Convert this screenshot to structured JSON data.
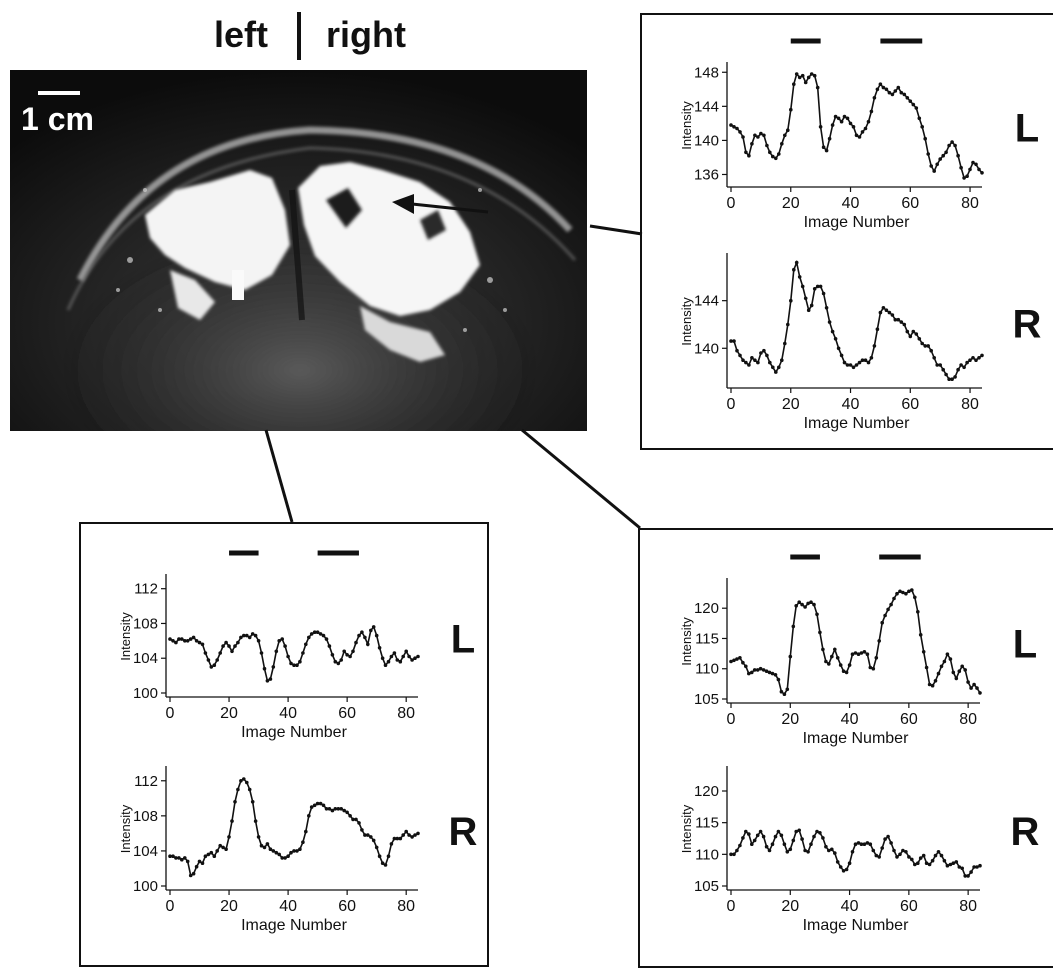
{
  "header": {
    "left": "left",
    "right": "right"
  },
  "image": {
    "scale_label": "1 cm"
  },
  "chart_data": [
    {
      "type": "line",
      "panel": "top-right",
      "subplot": "L",
      "label": "L",
      "xlabel": "Image Number",
      "ylabel": "Intensity",
      "xlim": [
        0,
        84
      ],
      "ylim": [
        135,
        148.5
      ],
      "yticks": [
        136,
        140,
        144,
        148
      ],
      "xticks": [
        0,
        20,
        40,
        60,
        80
      ],
      "stim_bars": [
        [
          20,
          30
        ],
        [
          50,
          64
        ]
      ],
      "values": [
        141.8,
        141.6,
        141.4,
        141.0,
        140.4,
        138.6,
        138.2,
        139.6,
        140.6,
        140.4,
        140.8,
        140.6,
        139.4,
        138.6,
        138.1,
        137.9,
        138.4,
        139.6,
        140.6,
        141.2,
        143.6,
        146.6,
        147.8,
        147.4,
        147.6,
        146.8,
        147.4,
        147.8,
        147.6,
        146.2,
        141.6,
        139.2,
        138.8,
        140.2,
        141.8,
        142.8,
        142.6,
        142.2,
        142.8,
        142.6,
        142.0,
        141.6,
        140.6,
        140.4,
        141.0,
        141.4,
        142.2,
        143.4,
        145.0,
        146.0,
        146.6,
        146.2,
        146.0,
        145.6,
        145.4,
        145.8,
        146.2,
        145.6,
        145.4,
        145.0,
        144.6,
        144.2,
        143.8,
        142.6,
        141.6,
        140.2,
        138.4,
        137.0,
        136.4,
        137.2,
        137.8,
        138.2,
        138.6,
        139.4,
        139.8,
        139.4,
        138.2,
        136.8,
        135.6,
        135.8,
        136.6,
        137.4,
        137.2,
        136.6,
        136.2
      ]
    },
    {
      "type": "line",
      "panel": "top-right",
      "subplot": "R",
      "label": "R",
      "xlabel": "Image Number",
      "ylabel": "Intensity",
      "xlim": [
        0,
        84
      ],
      "ylim": [
        137,
        147.5
      ],
      "yticks": [
        140,
        144
      ],
      "xticks": [
        0,
        20,
        40,
        60,
        80
      ],
      "values": [
        140.6,
        140.6,
        139.8,
        139.4,
        139.0,
        138.8,
        138.6,
        139.2,
        139.0,
        138.8,
        139.6,
        139.8,
        139.4,
        138.8,
        138.4,
        138.0,
        138.4,
        139.0,
        140.4,
        142.0,
        144.0,
        146.6,
        147.2,
        146.0,
        145.2,
        144.2,
        143.2,
        143.6,
        145.0,
        145.2,
        145.2,
        144.6,
        143.4,
        142.2,
        141.4,
        140.8,
        140.0,
        139.4,
        138.8,
        138.6,
        138.6,
        138.4,
        138.6,
        138.8,
        139.0,
        139.0,
        138.8,
        139.2,
        140.2,
        141.6,
        143.0,
        143.4,
        143.2,
        143.0,
        142.8,
        142.4,
        142.4,
        142.2,
        142.0,
        141.4,
        141.0,
        141.4,
        141.2,
        140.8,
        140.4,
        140.2,
        140.2,
        139.8,
        139.2,
        138.6,
        138.6,
        138.2,
        137.8,
        137.4,
        137.4,
        137.6,
        138.2,
        138.6,
        138.4,
        138.8,
        139.0,
        139.2,
        139.0,
        139.2,
        139.4
      ]
    },
    {
      "type": "line",
      "panel": "bottom-left",
      "subplot": "L",
      "label": "L",
      "xlabel": "Image Number",
      "ylabel": "Intensity",
      "xlim": [
        0,
        84
      ],
      "ylim": [
        100,
        113
      ],
      "yticks": [
        100,
        104,
        108,
        112
      ],
      "xticks": [
        0,
        20,
        40,
        60,
        80
      ],
      "stim_bars": [
        [
          20,
          30
        ],
        [
          50,
          64
        ]
      ],
      "values": [
        106.2,
        106.0,
        105.8,
        106.2,
        106.2,
        106.0,
        106.0,
        106.2,
        106.4,
        106.0,
        105.8,
        105.6,
        104.6,
        103.8,
        103.0,
        103.2,
        103.8,
        104.6,
        105.4,
        105.8,
        105.4,
        104.8,
        105.4,
        105.8,
        106.4,
        106.6,
        106.6,
        106.4,
        106.8,
        106.6,
        106.0,
        104.6,
        102.8,
        101.4,
        101.6,
        103.0,
        104.8,
        106.0,
        106.2,
        105.4,
        104.2,
        103.4,
        103.2,
        103.2,
        103.6,
        104.6,
        105.6,
        106.4,
        106.8,
        107.0,
        107.0,
        106.8,
        106.6,
        106.2,
        105.4,
        104.4,
        103.6,
        103.4,
        103.8,
        104.8,
        104.4,
        104.2,
        104.8,
        105.8,
        106.6,
        107.0,
        106.4,
        105.6,
        107.2,
        107.6,
        106.6,
        105.2,
        104.0,
        103.2,
        103.6,
        104.2,
        104.6,
        103.8,
        103.6,
        104.2,
        104.8,
        104.2,
        103.8,
        104.0,
        104.2
      ]
    },
    {
      "type": "line",
      "panel": "bottom-left",
      "subplot": "R",
      "label": "R",
      "xlabel": "Image Number",
      "ylabel": "Intensity",
      "xlim": [
        0,
        84
      ],
      "ylim": [
        100,
        113
      ],
      "yticks": [
        100,
        104,
        108,
        112
      ],
      "xticks": [
        0,
        20,
        40,
        60,
        80
      ],
      "values": [
        103.4,
        103.4,
        103.2,
        103.2,
        103.0,
        103.2,
        102.8,
        101.2,
        101.4,
        102.2,
        102.8,
        102.6,
        103.4,
        103.6,
        103.8,
        103.4,
        104.0,
        104.6,
        104.4,
        104.2,
        105.6,
        107.4,
        109.6,
        111.0,
        112.0,
        112.2,
        111.8,
        111.0,
        109.6,
        107.4,
        105.6,
        104.6,
        104.4,
        104.8,
        104.2,
        104.0,
        103.8,
        103.6,
        103.2,
        103.2,
        103.4,
        103.8,
        104.0,
        104.0,
        104.2,
        105.0,
        106.2,
        108.0,
        109.0,
        109.2,
        109.4,
        109.4,
        109.2,
        108.8,
        108.8,
        108.6,
        108.8,
        108.8,
        108.8,
        108.6,
        108.4,
        108.0,
        107.6,
        107.6,
        107.2,
        106.4,
        105.8,
        105.8,
        105.6,
        105.2,
        104.4,
        103.4,
        102.6,
        102.4,
        103.4,
        104.8,
        105.4,
        105.4,
        105.4,
        105.8,
        106.2,
        105.8,
        105.6,
        105.8,
        106.0
      ]
    },
    {
      "type": "line",
      "panel": "bottom-right",
      "subplot": "L",
      "label": "L",
      "xlabel": "Image Number",
      "ylabel": "Intensity",
      "xlim": [
        0,
        84
      ],
      "ylim": [
        105,
        124
      ],
      "yticks": [
        105,
        110,
        115,
        120
      ],
      "xticks": [
        0,
        20,
        40,
        60,
        80
      ],
      "stim_bars": [
        [
          20,
          30
        ],
        [
          50,
          64
        ]
      ],
      "values": [
        111.2,
        111.4,
        111.6,
        111.8,
        111.0,
        110.4,
        109.2,
        109.4,
        109.8,
        109.8,
        110.0,
        109.8,
        109.6,
        109.4,
        109.2,
        109.0,
        108.2,
        106.2,
        105.8,
        106.6,
        112.0,
        117.0,
        120.4,
        121.0,
        120.6,
        120.2,
        120.8,
        121.0,
        120.6,
        119.0,
        116.0,
        113.2,
        111.2,
        110.8,
        112.0,
        113.2,
        111.8,
        110.6,
        109.6,
        109.4,
        110.6,
        112.4,
        112.6,
        112.4,
        112.6,
        112.8,
        112.4,
        110.2,
        110.0,
        111.8,
        114.6,
        117.6,
        118.8,
        119.8,
        120.6,
        121.6,
        122.4,
        122.8,
        122.6,
        122.4,
        122.8,
        123.0,
        121.8,
        119.4,
        115.6,
        112.8,
        110.2,
        107.4,
        107.2,
        108.0,
        109.2,
        110.4,
        111.2,
        112.4,
        111.6,
        109.4,
        108.4,
        109.6,
        110.4,
        109.8,
        107.8,
        106.8,
        107.4,
        106.8,
        106.0
      ]
    },
    {
      "type": "line",
      "panel": "bottom-right",
      "subplot": "R",
      "label": "R",
      "xlabel": "Image Number",
      "ylabel": "Intensity",
      "xlim": [
        0,
        84
      ],
      "ylim": [
        105,
        123
      ],
      "yticks": [
        105,
        110,
        115,
        120
      ],
      "xticks": [
        0,
        20,
        40,
        60,
        80
      ],
      "values": [
        110.0,
        110.0,
        110.6,
        111.4,
        112.6,
        113.6,
        113.2,
        111.6,
        112.2,
        113.0,
        113.6,
        112.8,
        111.2,
        110.6,
        111.6,
        112.8,
        113.6,
        113.0,
        111.6,
        110.4,
        110.8,
        112.2,
        113.6,
        113.8,
        112.4,
        110.6,
        110.4,
        111.6,
        112.8,
        113.6,
        113.4,
        112.6,
        111.2,
        110.6,
        110.8,
        110.2,
        108.8,
        108.0,
        107.4,
        107.6,
        108.6,
        110.4,
        111.6,
        111.8,
        111.6,
        111.6,
        111.8,
        111.6,
        110.6,
        109.8,
        109.6,
        111.0,
        112.4,
        112.8,
        111.8,
        110.6,
        109.6,
        110.0,
        110.6,
        110.4,
        109.6,
        109.2,
        108.4,
        108.6,
        109.4,
        109.8,
        108.6,
        108.4,
        109.0,
        109.8,
        110.4,
        109.8,
        109.0,
        108.2,
        108.4,
        108.6,
        108.8,
        108.0,
        107.8,
        106.6,
        106.6,
        107.2,
        108.0,
        108.0,
        108.2
      ]
    }
  ]
}
